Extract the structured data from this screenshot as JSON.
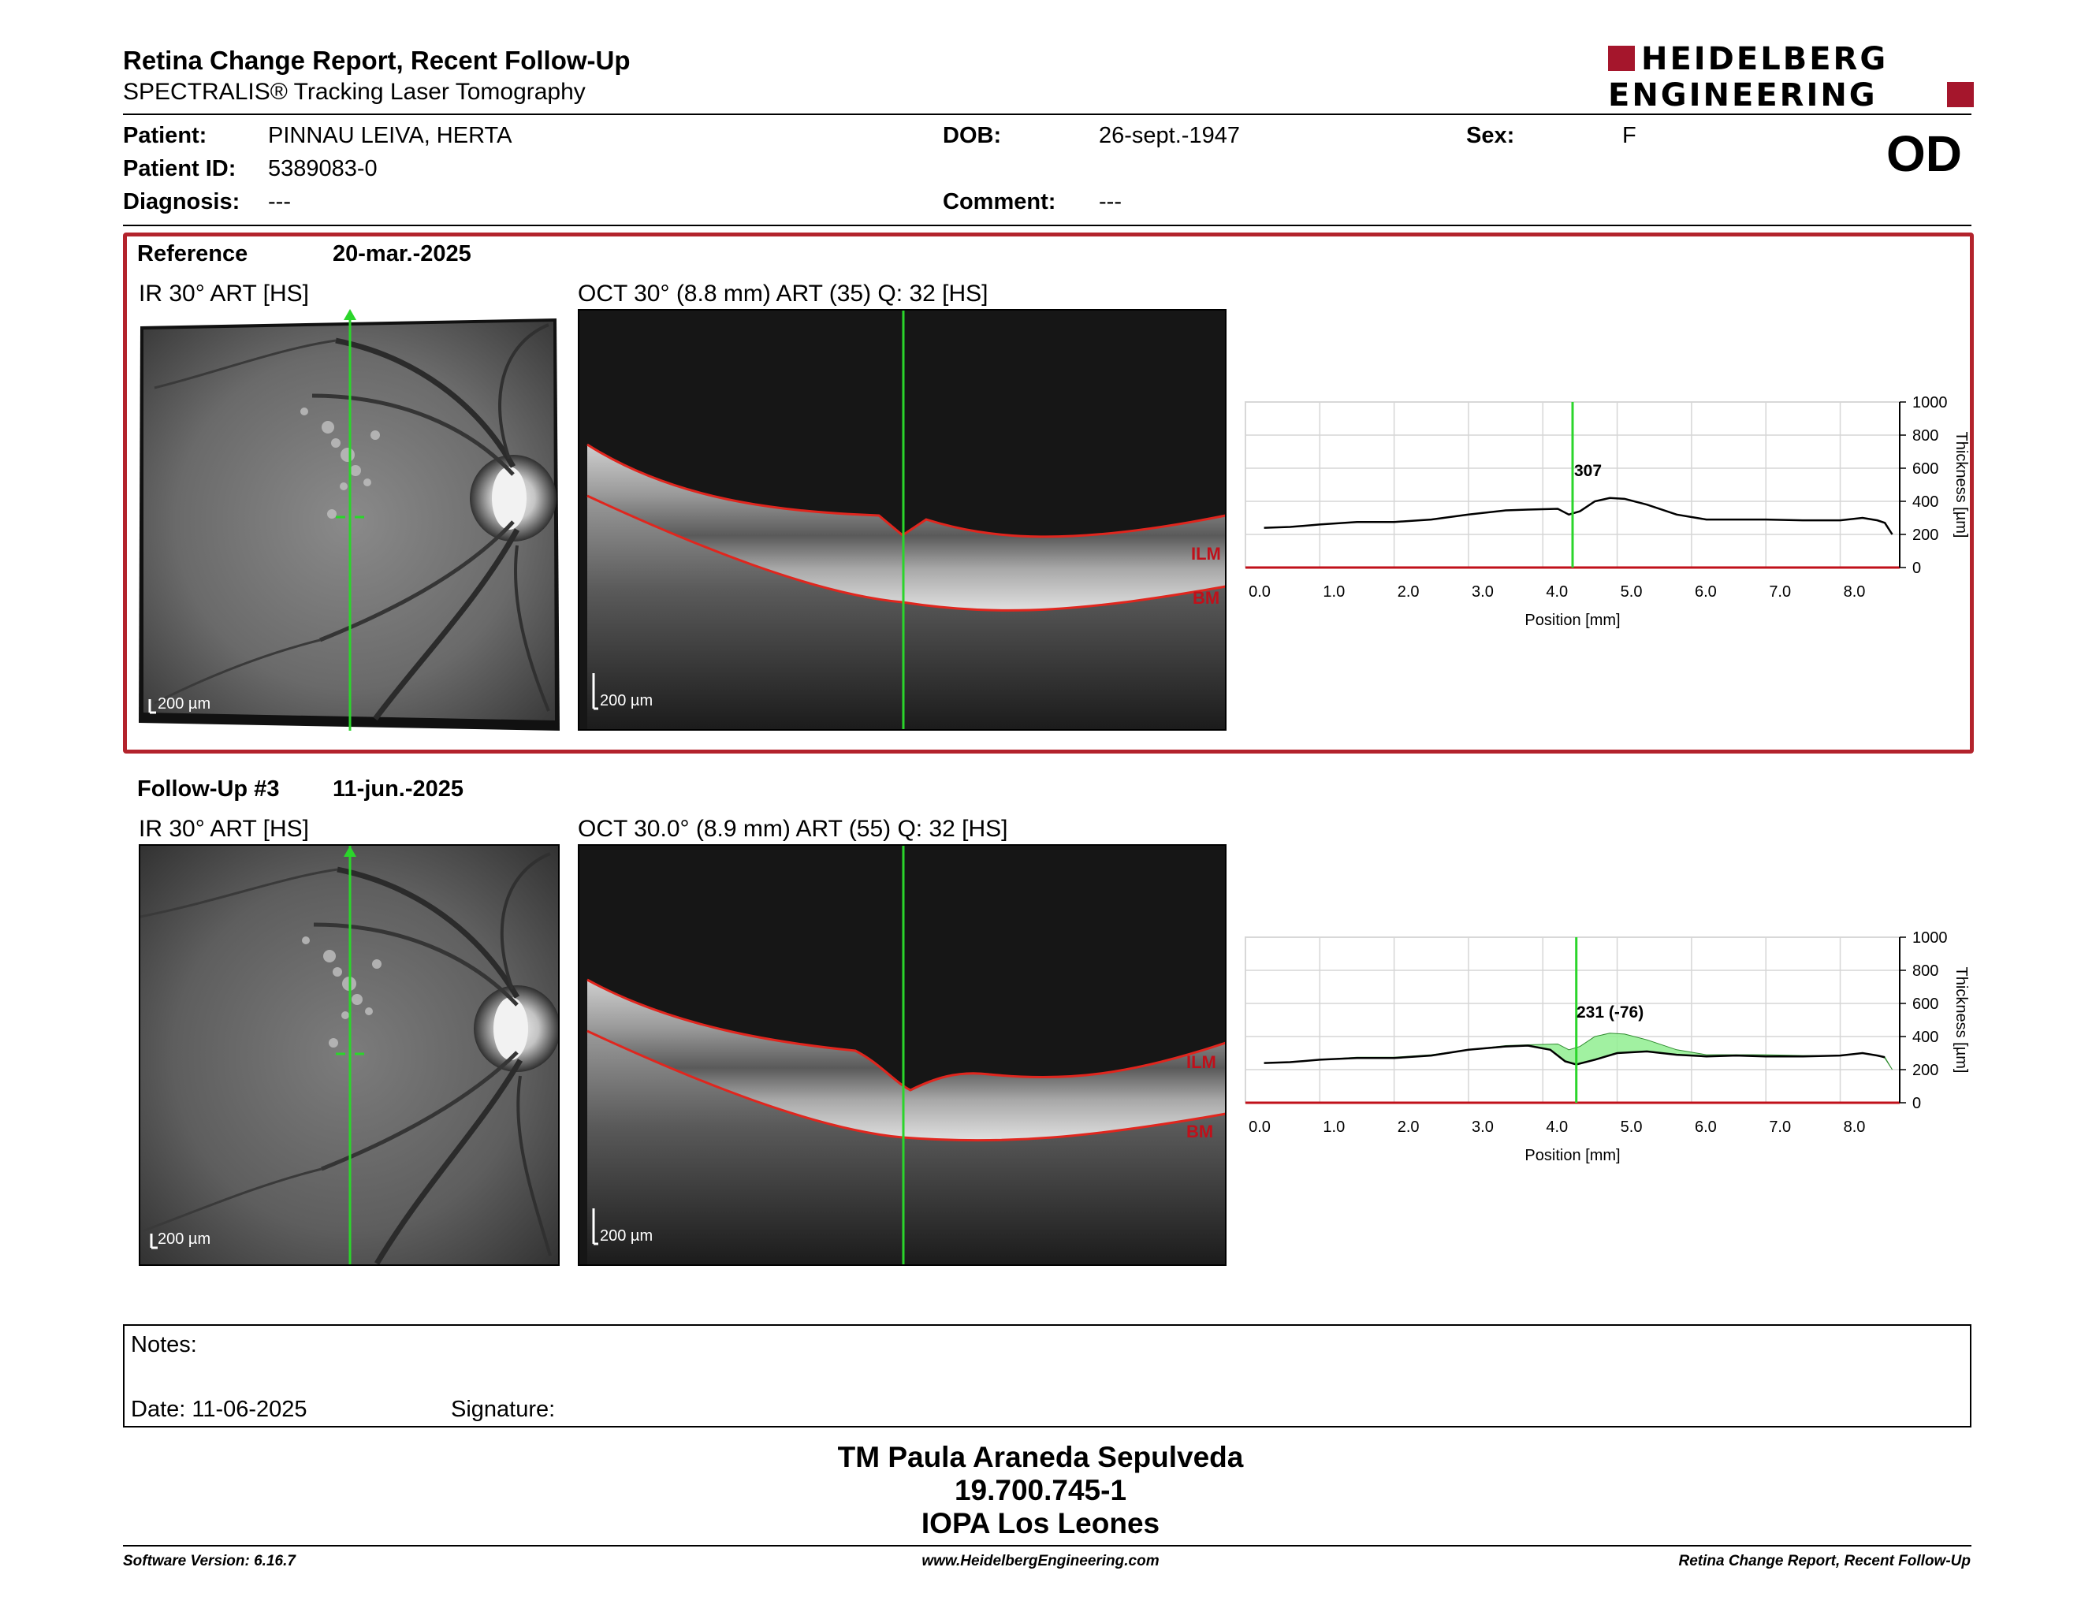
{
  "report": {
    "title": "Retina Change Report, Recent Follow-Up",
    "subtitle": "SPECTRALIS® Tracking Laser Tomography",
    "brand_line1": "HEIDELBERG",
    "brand_line2": "ENGINEERING",
    "brand_color": "#a5162c"
  },
  "patient": {
    "name_label": "Patient:",
    "name": "PINNAU LEIVA, HERTA",
    "id_label": "Patient ID:",
    "id": "5389083-0",
    "diagnosis_label": "Diagnosis:",
    "diagnosis": "---",
    "dob_label": "DOB:",
    "dob": "26-sept.-1947",
    "comment_label": "Comment:",
    "comment": "---",
    "sex_label": "Sex:",
    "sex": "F",
    "eye": "OD"
  },
  "reference": {
    "label": "Reference",
    "date": "20-mar.-2025",
    "ir_title": "IR 30° ART [HS]",
    "oct_title": "OCT 30° (8.8 mm) ART (35) Q: 32 [HS]",
    "scale_label": "200 µm",
    "layer_top": "ILM",
    "layer_bottom": "BM",
    "thickness_label": "307",
    "frame_color": "#b3232c"
  },
  "followup": {
    "label": "Follow-Up #3",
    "date": "11-jun.-2025",
    "ir_title": "IR 30° ART [HS]",
    "oct_title": "OCT 30.0° (8.9 mm) ART (55) Q: 32 [HS]",
    "scale_label": "200 µm",
    "layer_top": "ILM",
    "layer_bottom": "BM",
    "thickness_label": "231 (-76)"
  },
  "chart_data": [
    {
      "type": "line",
      "xlabel": "Position [mm]",
      "ylabel": "Thickness [µm]",
      "xlim": [
        0,
        8.8
      ],
      "ylim": [
        0,
        1000
      ],
      "x_ticks": [
        "0.0",
        "1.0",
        "2.0",
        "3.0",
        "4.0",
        "5.0",
        "6.0",
        "7.0",
        "8.0"
      ],
      "y_ticks": [
        "0",
        "200",
        "400",
        "600",
        "800",
        "1000"
      ],
      "cursor_x": 4.4,
      "cursor_label": "307",
      "series": [
        {
          "x": [
            0.25,
            0.6,
            1.0,
            1.5,
            2.0,
            2.5,
            3.0,
            3.5,
            3.8,
            4.2,
            4.35,
            4.5,
            4.7,
            4.9,
            5.1,
            5.4,
            5.8,
            6.2,
            6.6,
            7.0,
            7.5,
            8.0,
            8.3,
            8.5,
            8.6,
            8.7
          ],
          "y": [
            240,
            245,
            260,
            275,
            275,
            290,
            320,
            345,
            350,
            355,
            320,
            340,
            400,
            420,
            415,
            380,
            320,
            290,
            290,
            290,
            285,
            285,
            300,
            285,
            270,
            200
          ]
        }
      ]
    },
    {
      "type": "area",
      "xlabel": "Position [mm]",
      "ylabel": "Thickness [µm]",
      "xlim": [
        0,
        8.8
      ],
      "ylim": [
        0,
        1000
      ],
      "x_ticks": [
        "0.0",
        "1.0",
        "2.0",
        "3.0",
        "4.0",
        "5.0",
        "6.0",
        "7.0",
        "8.0"
      ],
      "y_ticks": [
        "0",
        "200",
        "400",
        "600",
        "800",
        "1000"
      ],
      "cursor_x": 4.45,
      "cursor_label": "231 (-76)",
      "series": [
        {
          "x": [
            0.25,
            0.6,
            1.0,
            1.5,
            2.0,
            2.5,
            3.0,
            3.5,
            3.8,
            4.2,
            4.35,
            4.5,
            4.7,
            4.9,
            5.1,
            5.4,
            5.8,
            6.2,
            6.6,
            7.0,
            7.5,
            8.0,
            8.3,
            8.5,
            8.6,
            8.7
          ],
          "y": [
            240,
            245,
            260,
            275,
            275,
            290,
            320,
            345,
            350,
            355,
            320,
            340,
            400,
            420,
            415,
            380,
            320,
            290,
            290,
            290,
            285,
            285,
            300,
            285,
            270,
            200
          ],
          "color": "#90ee90"
        },
        {
          "x": [
            0.25,
            0.6,
            1.0,
            1.5,
            2.0,
            2.5,
            3.0,
            3.5,
            3.8,
            4.1,
            4.3,
            4.45,
            4.7,
            5.0,
            5.4,
            5.8,
            6.2,
            6.6,
            7.0,
            7.5,
            8.0,
            8.3,
            8.5,
            8.6
          ],
          "y": [
            240,
            245,
            260,
            270,
            270,
            285,
            320,
            340,
            345,
            320,
            250,
            231,
            260,
            300,
            310,
            290,
            280,
            285,
            280,
            280,
            285,
            300,
            285,
            275
          ],
          "color": "#000000"
        }
      ]
    }
  ],
  "notes": {
    "label": "Notes:",
    "date_label": "Date: 11-06-2025",
    "signature_label": "Signature:"
  },
  "signer": {
    "name": "TM Paula Araneda Sepulveda",
    "rut": "19.700.745-1",
    "institution": "IOPA Los Leones"
  },
  "footer": {
    "software": "Software Version: 6.16.7",
    "website": "www.HeidelbergEngineering.com",
    "report_name": "Retina Change Report, Recent Follow-Up"
  }
}
